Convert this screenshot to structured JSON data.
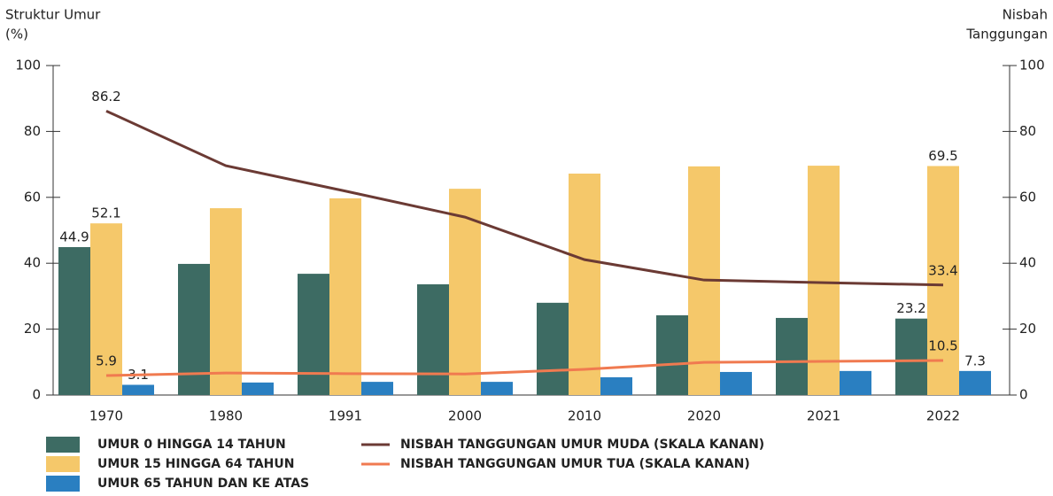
{
  "chart_data": {
    "type": "bar",
    "y_label": [
      "Struktur Umur",
      "(%)"
    ],
    "y2_label": [
      "Nisbah",
      "Tanggungan"
    ],
    "categories": [
      "1970",
      "1980",
      "1991",
      "2000",
      "2010",
      "2020",
      "2021",
      "2022"
    ],
    "ylim": [
      0,
      100
    ],
    "yticks": [
      0,
      20,
      40,
      60,
      80,
      100
    ],
    "y2lim": [
      0,
      100
    ],
    "y2ticks": [
      0,
      20,
      40,
      60,
      80,
      100
    ],
    "series": [
      {
        "name": "UMUR 0 HINGGA 14 TAHUN",
        "type": "bar",
        "color": "#3d6b63",
        "values": [
          44.9,
          39.8,
          36.8,
          33.6,
          28.0,
          24.2,
          23.4,
          23.2
        ],
        "value_labels": [
          "44.9",
          null,
          null,
          null,
          null,
          null,
          null,
          "23.2"
        ]
      },
      {
        "name": "UMUR 15 HINGGA 64 TAHUN",
        "type": "bar",
        "color": "#f5c86a",
        "values": [
          52.1,
          56.7,
          59.7,
          62.6,
          67.2,
          69.4,
          69.6,
          69.5
        ],
        "value_labels": [
          "52.1",
          null,
          null,
          null,
          null,
          null,
          null,
          "69.5"
        ]
      },
      {
        "name": "UMUR 65 TAHUN DAN KE ATAS",
        "type": "bar",
        "color": "#2a7fc1",
        "values": [
          3.1,
          3.8,
          4.0,
          4.0,
          5.4,
          7.0,
          7.3,
          7.3
        ],
        "value_labels": [
          "3.1",
          null,
          null,
          null,
          null,
          null,
          null,
          "7.3"
        ]
      },
      {
        "name": "NISBAH TANGGUNGAN UMUR MUDA (SKALA KANAN)",
        "type": "line",
        "axis": "y2",
        "color": "#6b3a34",
        "values": [
          86.2,
          69.6,
          61.9,
          54.0,
          41.1,
          34.9,
          34.1,
          33.4
        ],
        "value_labels": [
          "86.2",
          null,
          null,
          null,
          null,
          null,
          null,
          "33.4"
        ]
      },
      {
        "name": "NISBAH TANGGUNGAN UMUR TUA (SKALA KANAN)",
        "type": "line",
        "axis": "y2",
        "color": "#f07a50",
        "values": [
          5.9,
          6.7,
          6.5,
          6.4,
          7.8,
          9.9,
          10.2,
          10.5
        ],
        "value_labels": [
          "5.9",
          null,
          null,
          null,
          null,
          null,
          null,
          "10.5"
        ]
      }
    ]
  }
}
